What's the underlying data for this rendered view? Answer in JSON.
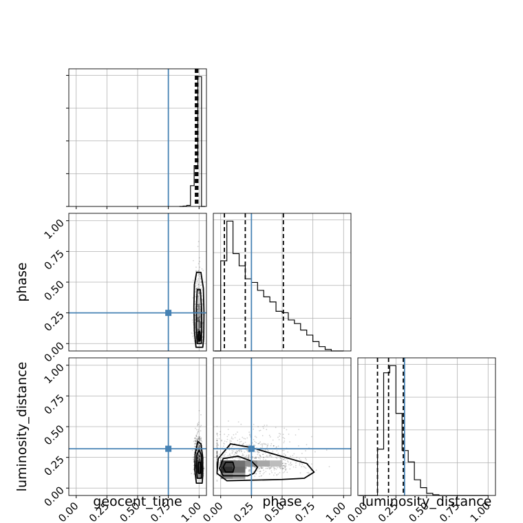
{
  "chart_data": {
    "type": "corner",
    "parameters": [
      "geocent_time",
      "phase",
      "luminosity_distance"
    ],
    "axis_labels": {
      "x": [
        "geocent_time",
        "phase",
        "luminosity_distance"
      ],
      "y": [
        "phase",
        "luminosity_distance"
      ]
    },
    "tick_labels": [
      "0.00",
      "0.25",
      "0.50",
      "0.75",
      "1.00"
    ],
    "tick_values": [
      0,
      0.25,
      0.5,
      0.75,
      1.0
    ],
    "axis_range": [
      -0.06,
      1.06
    ],
    "truths": {
      "geocent_time": 0.75,
      "phase": 0.25,
      "luminosity_distance": 0.32
    },
    "truth_color": "#4682b4",
    "grid": true,
    "histograms": [
      {
        "parameter": "geocent_time",
        "bin_edges": [
          0.84,
          0.87,
          0.9,
          0.93,
          0.96,
          0.99,
          1.02,
          1.05
        ],
        "counts": [
          0,
          1,
          3,
          60,
          118,
          375,
          0
        ],
        "quantiles": [
          0.97,
          0.98,
          0.99
        ]
      },
      {
        "parameter": "phase",
        "bin_edges": [
          -0.05,
          0.0,
          0.05,
          0.1,
          0.15,
          0.2,
          0.25,
          0.3,
          0.35,
          0.4,
          0.45,
          0.5,
          0.55,
          0.6,
          0.65,
          0.7,
          0.75,
          0.8,
          0.85,
          0.9,
          0.95,
          1.0
        ],
        "counts": [
          0,
          125,
          180,
          135,
          118,
          100,
          95,
          84,
          75,
          68,
          55,
          53,
          43,
          38,
          29,
          22,
          13,
          6,
          2,
          0,
          0
        ],
        "quantiles": [
          0.03,
          0.2,
          0.51
        ]
      },
      {
        "parameter": "luminosity_distance",
        "bin_edges": [
          -0.05,
          0.0,
          0.05,
          0.1,
          0.15,
          0.2,
          0.25,
          0.3,
          0.35,
          0.4,
          0.45,
          0.5,
          0.55,
          0.6,
          0.65,
          0.7,
          0.75,
          0.8,
          0.85,
          0.9,
          0.95,
          1.0
        ],
        "counts": [
          0,
          0,
          0,
          65,
          172,
          182,
          115,
          63,
          47,
          22,
          11,
          3,
          1,
          0,
          0,
          0,
          0,
          0,
          0,
          0,
          0
        ],
        "quantiles": [
          0.1,
          0.19,
          0.31
        ]
      }
    ],
    "joint": [
      {
        "x": "geocent_time",
        "y": "phase",
        "center": [
          0.995,
          0.07
        ],
        "spread": [
          0.012,
          0.24
        ],
        "density_cells": [
          {
            "x": 1.0,
            "y": 0.05,
            "v": 0.95
          },
          {
            "x": 1.0,
            "y": 0.15,
            "v": 0.7
          },
          {
            "x": 1.0,
            "y": 0.25,
            "v": 0.45
          },
          {
            "x": 1.0,
            "y": 0.35,
            "v": 0.25
          },
          {
            "x": 0.98,
            "y": 0.15,
            "v": 0.35
          }
        ],
        "contours": [
          {
            "level": 0.118,
            "points": [
              [
                1.006,
                0.02
              ],
              [
                0.998,
                0.02
              ],
              [
                0.995,
                0.06
              ],
              [
                0.998,
                0.1
              ],
              [
                1.006,
                0.1
              ],
              [
                1.009,
                0.06
              ]
            ]
          },
          {
            "level": 0.393,
            "points": [
              [
                1.018,
                0.0
              ],
              [
                0.985,
                0.0
              ],
              [
                0.978,
                0.12
              ],
              [
                0.978,
                0.3
              ],
              [
                0.985,
                0.44
              ],
              [
                1.01,
                0.44
              ],
              [
                1.02,
                0.3
              ],
              [
                1.022,
                0.12
              ]
            ]
          },
          {
            "level": 0.675,
            "points": [
              [
                1.03,
                -0.03
              ],
              [
                0.975,
                -0.03
              ],
              [
                0.962,
                0.1
              ],
              [
                0.958,
                0.3
              ],
              [
                0.962,
                0.48
              ],
              [
                0.98,
                0.58
              ],
              [
                1.015,
                0.58
              ],
              [
                1.035,
                0.45
              ],
              [
                1.04,
                0.25
              ],
              [
                1.038,
                0.05
              ]
            ]
          }
        ]
      },
      {
        "x": "geocent_time",
        "y": "luminosity_distance",
        "center": [
          0.995,
          0.2
        ],
        "spread": [
          0.012,
          0.08
        ],
        "density_cells": [
          {
            "x": 1.0,
            "y": 0.15,
            "v": 0.95
          },
          {
            "x": 1.0,
            "y": 0.2,
            "v": 0.85
          },
          {
            "x": 1.0,
            "y": 0.1,
            "v": 0.55
          },
          {
            "x": 1.0,
            "y": 0.3,
            "v": 0.4
          }
        ],
        "contours": [
          {
            "level": 0.118,
            "points": [
              [
                1.01,
                0.12
              ],
              [
                0.995,
                0.12
              ],
              [
                0.992,
                0.17
              ],
              [
                0.995,
                0.21
              ],
              [
                1.01,
                0.21
              ],
              [
                1.013,
                0.17
              ]
            ]
          },
          {
            "level": 0.393,
            "points": [
              [
                1.018,
                0.08
              ],
              [
                0.985,
                0.08
              ],
              [
                0.978,
                0.16
              ],
              [
                0.982,
                0.27
              ],
              [
                1.0,
                0.31
              ],
              [
                1.018,
                0.27
              ],
              [
                1.022,
                0.16
              ]
            ]
          },
          {
            "level": 0.675,
            "points": [
              [
                1.025,
                0.04
              ],
              [
                0.978,
                0.04
              ],
              [
                0.965,
                0.15
              ],
              [
                0.968,
                0.28
              ],
              [
                0.99,
                0.38
              ],
              [
                1.015,
                0.36
              ],
              [
                1.03,
                0.25
              ],
              [
                1.03,
                0.1
              ]
            ]
          }
        ]
      },
      {
        "x": "phase",
        "y": "luminosity_distance",
        "center": [
          0.22,
          0.21
        ],
        "spread": [
          0.22,
          0.08
        ],
        "density_cells": [
          {
            "x": 0.05,
            "y": 0.15,
            "v": 0.95
          },
          {
            "x": 0.05,
            "y": 0.2,
            "v": 0.85
          },
          {
            "x": 0.15,
            "y": 0.15,
            "v": 0.7
          },
          {
            "x": 0.15,
            "y": 0.2,
            "v": 0.65
          },
          {
            "x": 0.25,
            "y": 0.2,
            "v": 0.5
          },
          {
            "x": 0.35,
            "y": 0.2,
            "v": 0.4
          },
          {
            "x": 0.45,
            "y": 0.2,
            "v": 0.3
          },
          {
            "x": 0.05,
            "y": 0.1,
            "v": 0.55
          },
          {
            "x": 0.15,
            "y": 0.1,
            "v": 0.45
          }
        ],
        "contours": [
          {
            "level": 0.118,
            "points": [
              [
                0.1,
                0.13
              ],
              [
                0.04,
                0.13
              ],
              [
                0.02,
                0.17
              ],
              [
                0.04,
                0.21
              ],
              [
                0.1,
                0.21
              ],
              [
                0.11,
                0.17
              ]
            ]
          },
          {
            "level": 0.393,
            "points": [
              [
                0.22,
                0.1
              ],
              [
                0.02,
                0.1
              ],
              [
                -0.01,
                0.16
              ],
              [
                0.02,
                0.24
              ],
              [
                0.14,
                0.26
              ],
              [
                0.25,
                0.22
              ],
              [
                0.3,
                0.17
              ],
              [
                0.27,
                0.12
              ]
            ]
          },
          {
            "level": 0.675,
            "points": [
              [
                0.5,
                0.07
              ],
              [
                0.05,
                0.06
              ],
              [
                -0.03,
                0.12
              ],
              [
                -0.02,
                0.24
              ],
              [
                0.08,
                0.36
              ],
              [
                0.25,
                0.33
              ],
              [
                0.42,
                0.28
              ],
              [
                0.7,
                0.2
              ],
              [
                0.76,
                0.13
              ],
              [
                0.68,
                0.08
              ]
            ]
          }
        ]
      }
    ]
  }
}
